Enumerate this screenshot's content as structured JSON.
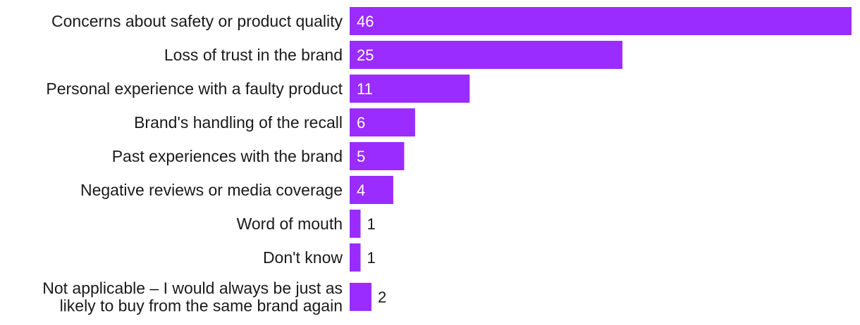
{
  "chart_data": {
    "type": "bar",
    "orientation": "horizontal",
    "title": "",
    "xlabel": "",
    "ylabel": "",
    "grid": false,
    "categories": [
      [
        "Concerns about safety or product quality"
      ],
      [
        "Loss of trust in the brand"
      ],
      [
        "Personal experience with a faulty product"
      ],
      [
        "Brand's handling of the recall"
      ],
      [
        "Past experiences with the brand"
      ],
      [
        "Negative reviews or media coverage"
      ],
      [
        "Word of mouth"
      ],
      [
        "Don't know"
      ],
      [
        "Not applicable – I would always be just as",
        "likely to buy from the same brand again"
      ]
    ],
    "values": [
      46,
      25,
      11,
      6,
      5,
      4,
      1,
      1,
      2
    ],
    "xlim": [
      0,
      46
    ],
    "colors": {
      "bar": "#9b2cff",
      "label_inside": "#ffffff",
      "label_outside": "#1a1a1a",
      "category_text": "#1a1a1a"
    }
  }
}
